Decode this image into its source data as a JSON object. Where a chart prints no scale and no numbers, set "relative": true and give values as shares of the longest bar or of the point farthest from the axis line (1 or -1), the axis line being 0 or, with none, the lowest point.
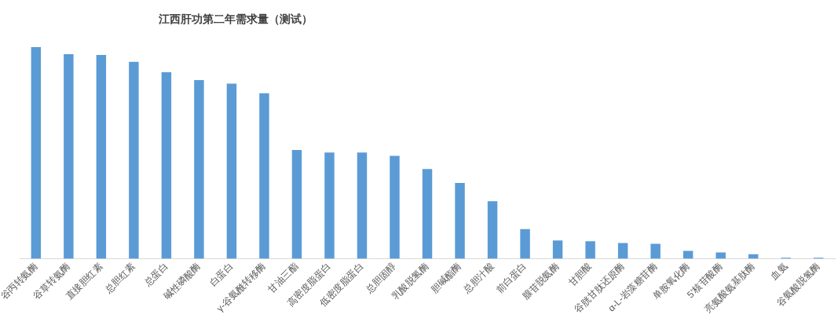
{
  "chart_data": {
    "type": "bar",
    "title": "江西肝功第二年需求量（测试）",
    "categories": [
      "谷丙转氨酶",
      "谷草转氨酶",
      "直接胆红素",
      "总胆红素",
      "总蛋白",
      "碱性磷酸酶",
      "白蛋白",
      "γ-谷氨酰转移酶",
      "甘油三酯",
      "高密度脂蛋白",
      "低密度脂蛋白",
      "总胆固醇",
      "乳酸脱氢酶",
      "胆碱酯酶",
      "总胆汁酸",
      "前白蛋白",
      "腺苷脱氨酶",
      "甘胆酸",
      "谷胱甘肽还原酶",
      "α-L-岩藻糖苷酶",
      "单胺氧化酶",
      "5'核苷酸酶",
      "亮氨酸氨基肽酶",
      "血氨",
      "谷氨酸脱氢酶"
    ],
    "values": [
      1,
      0.967,
      0.963,
      0.93,
      0.881,
      0.844,
      0.827,
      0.782,
      0.514,
      0.502,
      0.502,
      0.486,
      0.424,
      0.358,
      0.272,
      0.14,
      0.086,
      0.082,
      0.074,
      0.07,
      0.037,
      0.029,
      0.021,
      0.004,
      0.004
    ],
    "color": "#5b9bd5",
    "relative": true,
    "grid": false,
    "legend": false
  }
}
